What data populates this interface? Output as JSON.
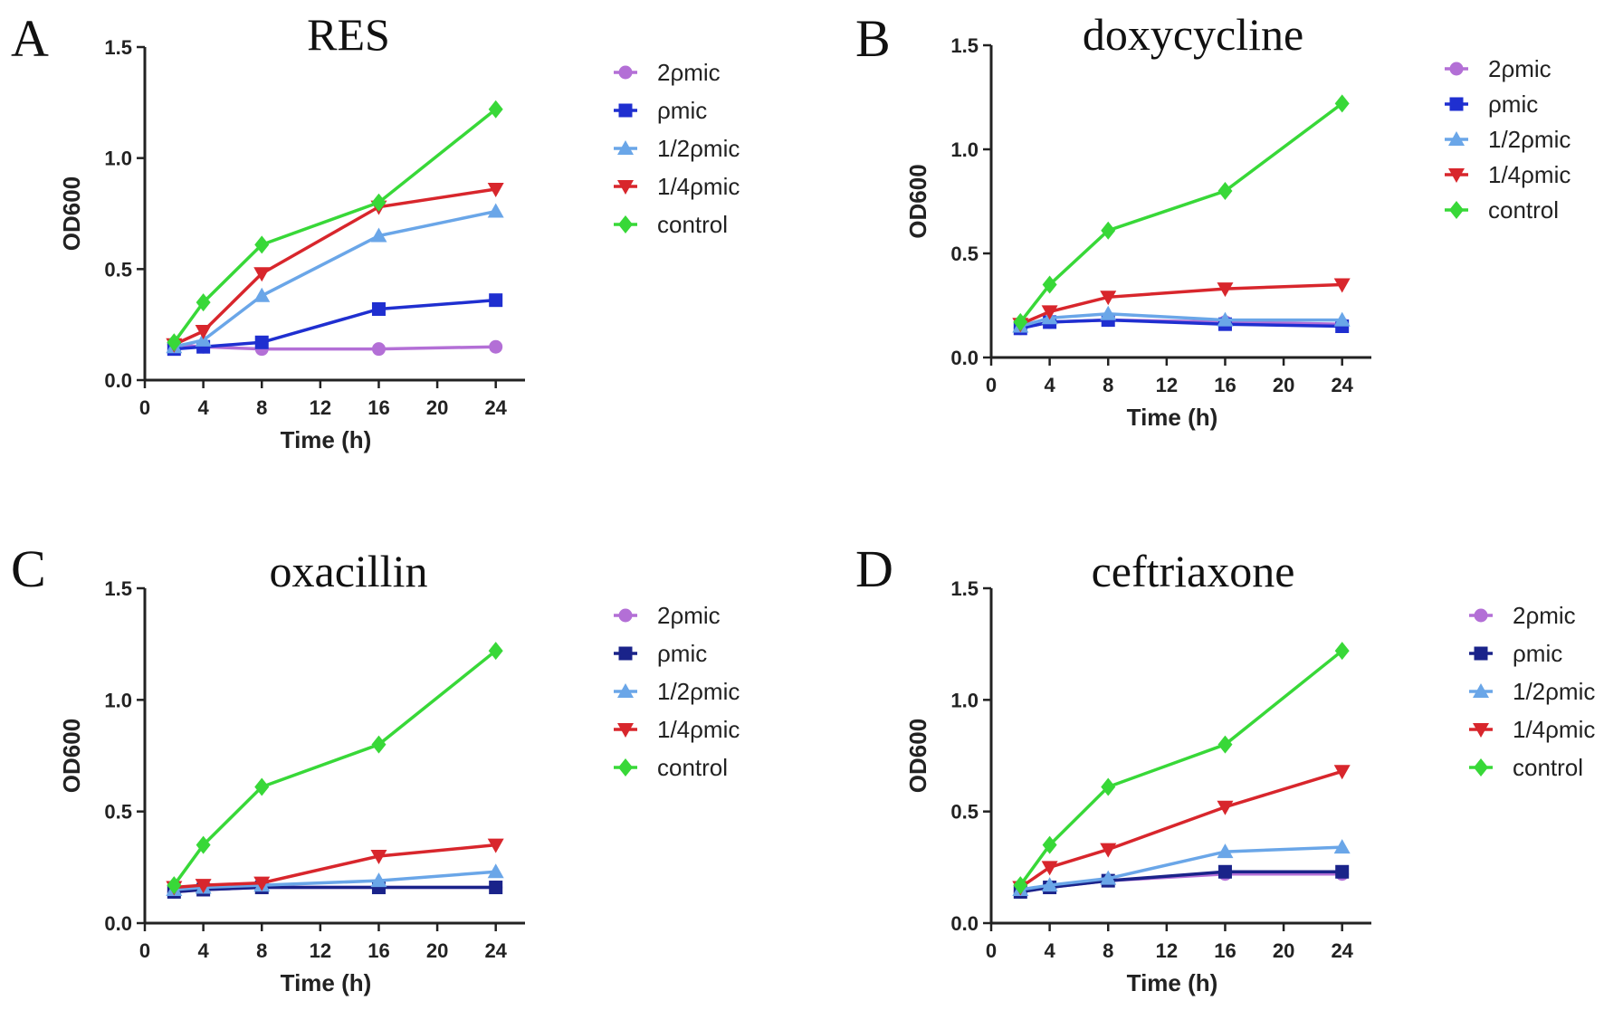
{
  "legend_labels": [
    "2ρmic",
    "ρmic",
    "1/2ρmic",
    "1/4ρmic",
    "control"
  ],
  "chart_data": [
    {
      "type": "line",
      "panel_letter": "A",
      "title": "RES",
      "xlabel": "Time (h)",
      "ylabel": "OD600",
      "xlim": [
        0,
        26
      ],
      "ylim": [
        0,
        1.5
      ],
      "xticks": [
        0,
        4,
        8,
        12,
        16,
        20,
        24
      ],
      "yticks": [
        "0.0",
        "0.5",
        "1.0",
        "1.5"
      ],
      "x": [
        2,
        4,
        8,
        16,
        24
      ],
      "series": [
        {
          "name": "2ρmic",
          "color": "#b36fd6",
          "marker": "circle",
          "values": [
            0.16,
            0.15,
            0.14,
            0.14,
            0.15
          ]
        },
        {
          "name": "ρmic",
          "color": "#1f2fd0",
          "marker": "square",
          "values": [
            0.14,
            0.15,
            0.17,
            0.32,
            0.36
          ]
        },
        {
          "name": "1/2ρmic",
          "color": "#6aa6e8",
          "marker": "triangle-up",
          "values": [
            0.15,
            0.18,
            0.38,
            0.65,
            0.76
          ]
        },
        {
          "name": "1/4ρmic",
          "color": "#d8262c",
          "marker": "triangle-down",
          "values": [
            0.16,
            0.22,
            0.48,
            0.78,
            0.86
          ]
        },
        {
          "name": "control",
          "color": "#38d838",
          "marker": "diamond",
          "values": [
            0.17,
            0.35,
            0.61,
            0.8,
            1.22
          ]
        }
      ]
    },
    {
      "type": "line",
      "panel_letter": "B",
      "title": "doxycycline",
      "xlabel": "Time (h)",
      "ylabel": "OD600",
      "xlim": [
        0,
        26
      ],
      "ylim": [
        0,
        1.5
      ],
      "xticks": [
        0,
        4,
        8,
        12,
        16,
        20,
        24
      ],
      "yticks": [
        "0.0",
        "0.5",
        "1.0",
        "1.5"
      ],
      "x": [
        2,
        4,
        8,
        16,
        24
      ],
      "series": [
        {
          "name": "2ρmic",
          "color": "#b36fd6",
          "marker": "circle",
          "values": [
            0.14,
            0.17,
            0.18,
            0.17,
            0.16
          ]
        },
        {
          "name": "ρmic",
          "color": "#1f2fd0",
          "marker": "square",
          "values": [
            0.14,
            0.17,
            0.18,
            0.16,
            0.15
          ]
        },
        {
          "name": "1/2ρmic",
          "color": "#6aa6e8",
          "marker": "triangle-up",
          "values": [
            0.15,
            0.19,
            0.21,
            0.18,
            0.18
          ]
        },
        {
          "name": "1/4ρmic",
          "color": "#d8262c",
          "marker": "triangle-down",
          "values": [
            0.16,
            0.22,
            0.29,
            0.33,
            0.35
          ]
        },
        {
          "name": "control",
          "color": "#38d838",
          "marker": "diamond",
          "values": [
            0.17,
            0.35,
            0.61,
            0.8,
            1.22
          ]
        }
      ]
    },
    {
      "type": "line",
      "panel_letter": "C",
      "title": "oxacillin",
      "xlabel": "Time (h)",
      "ylabel": "OD600",
      "xlim": [
        0,
        26
      ],
      "ylim": [
        0,
        1.5
      ],
      "xticks": [
        0,
        4,
        8,
        12,
        16,
        20,
        24
      ],
      "yticks": [
        "0.0",
        "0.5",
        "1.0",
        "1.5"
      ],
      "x": [
        2,
        4,
        8,
        16,
        24
      ],
      "series": [
        {
          "name": "2ρmic",
          "color": "#b36fd6",
          "marker": "circle",
          "values": [
            0.14,
            0.15,
            0.16,
            0.16,
            0.16
          ]
        },
        {
          "name": "ρmic",
          "color": "#1a238a",
          "marker": "square",
          "values": [
            0.14,
            0.15,
            0.16,
            0.16,
            0.16
          ]
        },
        {
          "name": "1/2ρmic",
          "color": "#6aa6e8",
          "marker": "triangle-up",
          "values": [
            0.15,
            0.16,
            0.17,
            0.19,
            0.23
          ]
        },
        {
          "name": "1/4ρmic",
          "color": "#d8262c",
          "marker": "triangle-down",
          "values": [
            0.16,
            0.17,
            0.18,
            0.3,
            0.35
          ]
        },
        {
          "name": "control",
          "color": "#38d838",
          "marker": "diamond",
          "values": [
            0.17,
            0.35,
            0.61,
            0.8,
            1.22
          ]
        }
      ]
    },
    {
      "type": "line",
      "panel_letter": "D",
      "title": "ceftriaxone",
      "xlabel": "Time (h)",
      "ylabel": "OD600",
      "xlim": [
        0,
        26
      ],
      "ylim": [
        0,
        1.5
      ],
      "xticks": [
        0,
        4,
        8,
        12,
        16,
        20,
        24
      ],
      "yticks": [
        "0.0",
        "0.5",
        "1.0",
        "1.5"
      ],
      "x": [
        2,
        4,
        8,
        16,
        24
      ],
      "series": [
        {
          "name": "2ρmic",
          "color": "#b36fd6",
          "marker": "circle",
          "values": [
            0.14,
            0.16,
            0.19,
            0.22,
            0.22
          ]
        },
        {
          "name": "ρmic",
          "color": "#1a238a",
          "marker": "square",
          "values": [
            0.14,
            0.16,
            0.19,
            0.23,
            0.23
          ]
        },
        {
          "name": "1/2ρmic",
          "color": "#6aa6e8",
          "marker": "triangle-up",
          "values": [
            0.15,
            0.17,
            0.2,
            0.32,
            0.34
          ]
        },
        {
          "name": "1/4ρmic",
          "color": "#d8262c",
          "marker": "triangle-down",
          "values": [
            0.16,
            0.25,
            0.33,
            0.52,
            0.68
          ]
        },
        {
          "name": "control",
          "color": "#38d838",
          "marker": "diamond",
          "values": [
            0.17,
            0.35,
            0.61,
            0.8,
            1.22
          ]
        }
      ]
    }
  ]
}
